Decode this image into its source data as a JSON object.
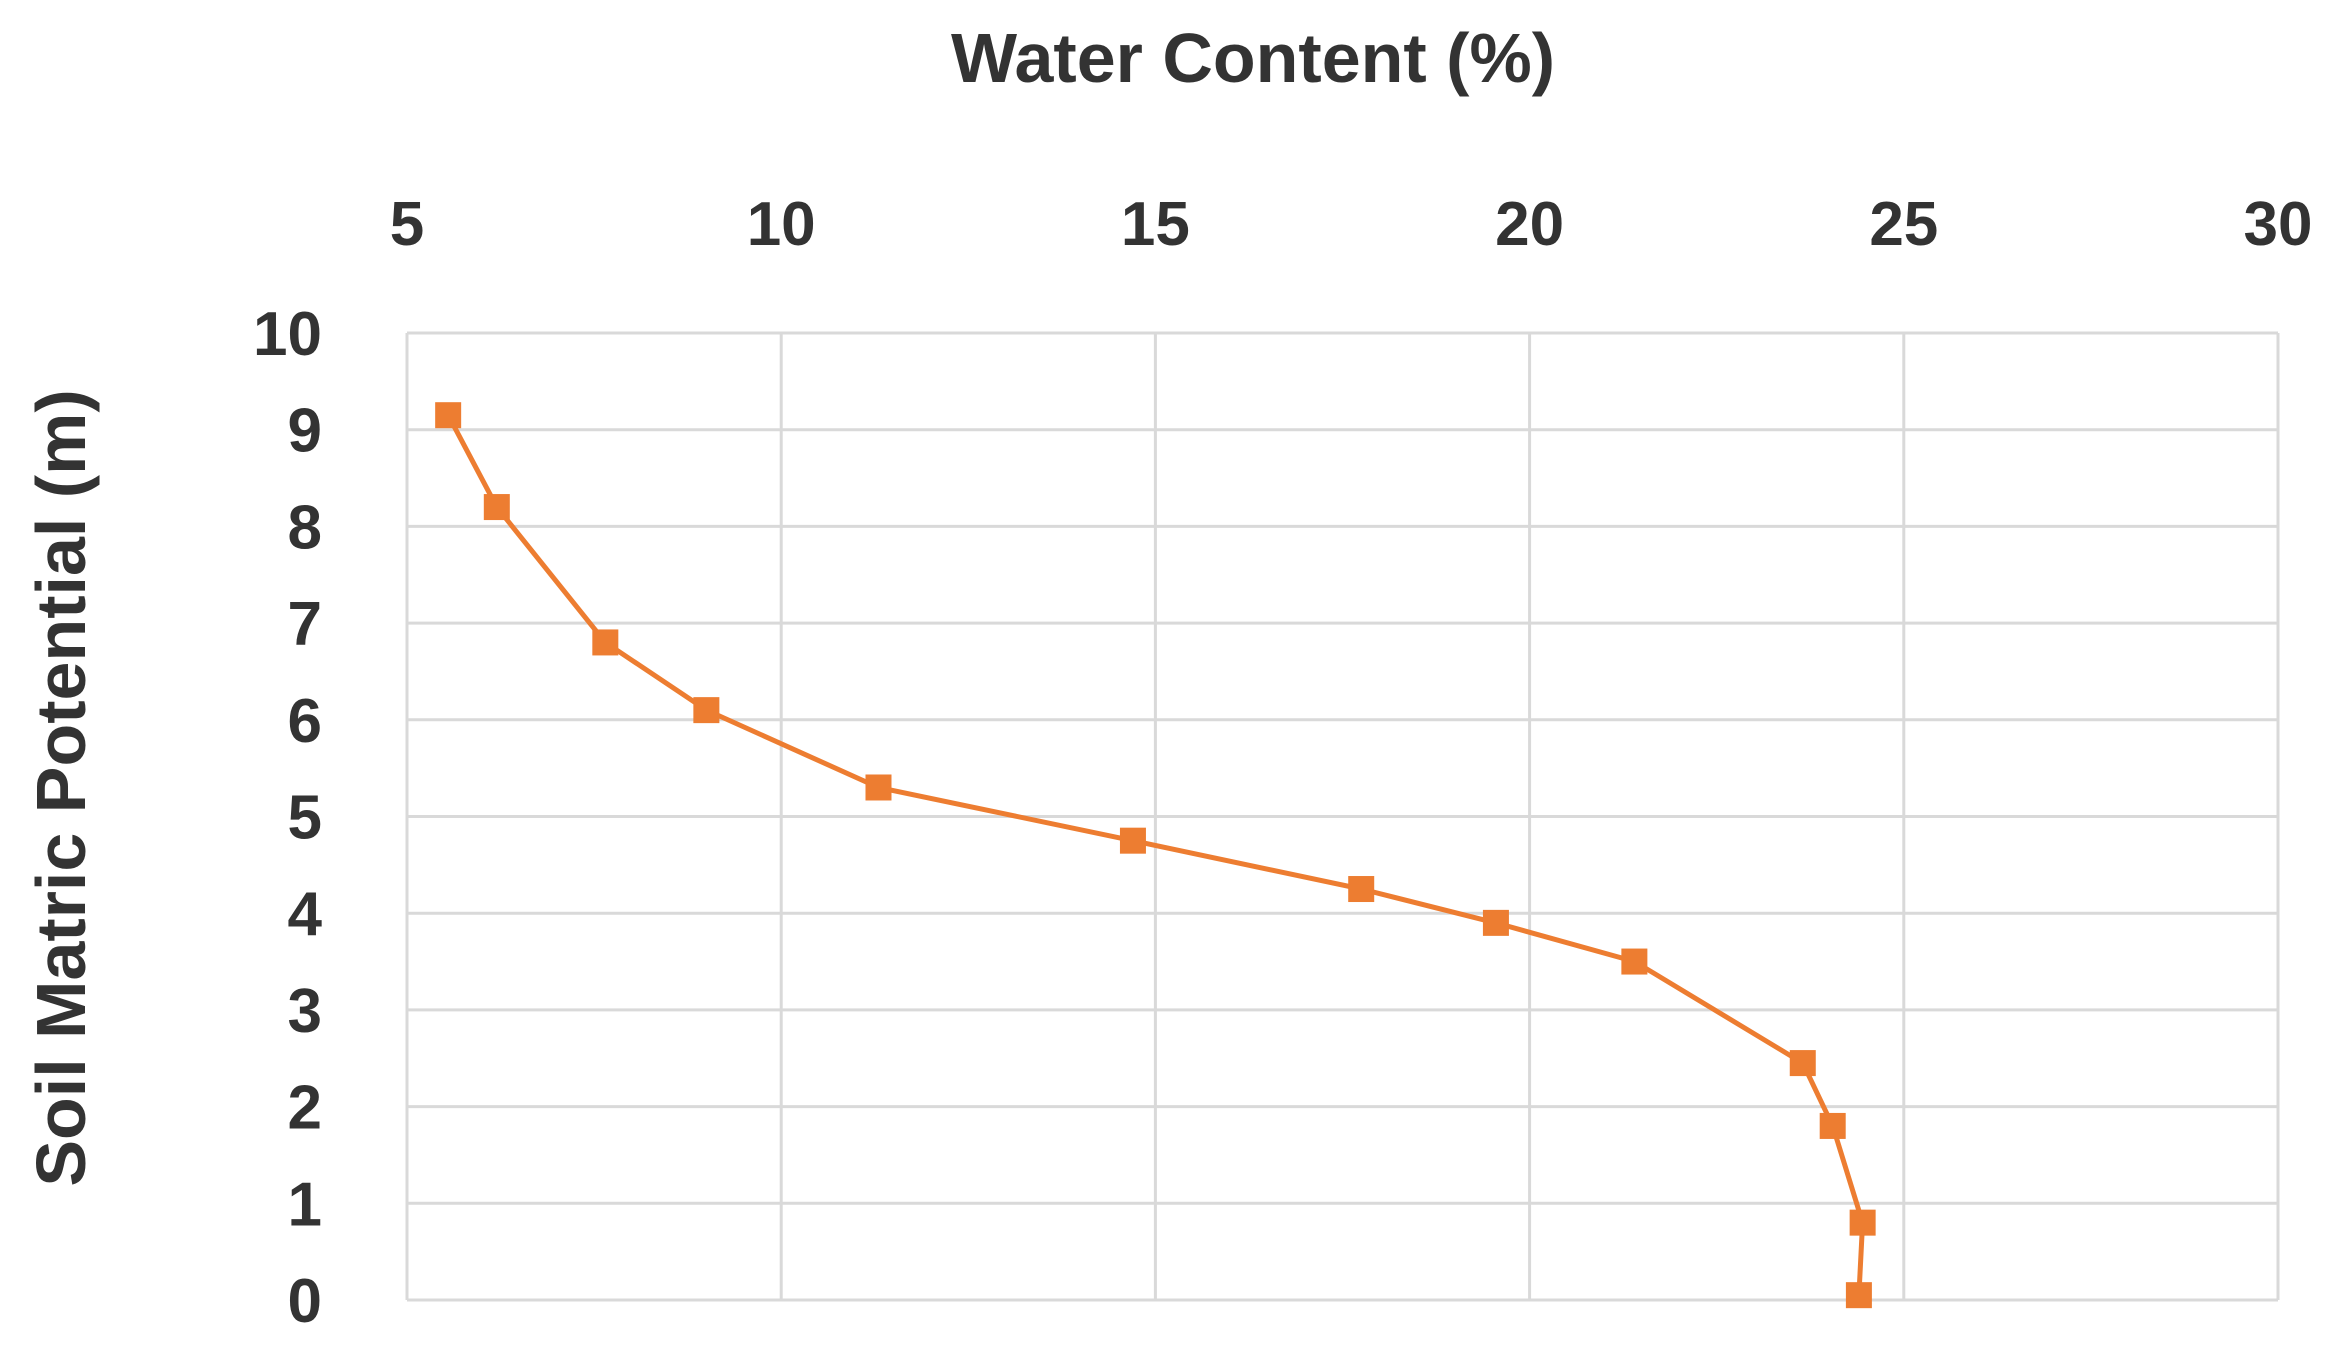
{
  "chart_data": {
    "type": "line",
    "xlabel": "Water Content (%)",
    "ylabel": "Soil Matric Potential (m)",
    "xlim": [
      5,
      30
    ],
    "ylim": [
      0,
      10
    ],
    "x_ticks": [
      "5",
      "10",
      "15",
      "20",
      "25",
      "30"
    ],
    "y_ticks": [
      "0",
      "1",
      "2",
      "3",
      "4",
      "5",
      "6",
      "7",
      "8",
      "9",
      "10"
    ],
    "x_axis_position": "top",
    "y_axis_inverted": true,
    "grid": true,
    "series": [
      {
        "marker": "square",
        "color": "#ED7D31",
        "points": [
          {
            "x": 5.55,
            "y": 9.15
          },
          {
            "x": 6.2,
            "y": 8.2
          },
          {
            "x": 7.65,
            "y": 6.8
          },
          {
            "x": 9.0,
            "y": 6.1
          },
          {
            "x": 11.3,
            "y": 5.3
          },
          {
            "x": 14.7,
            "y": 4.75
          },
          {
            "x": 17.75,
            "y": 4.25
          },
          {
            "x": 19.55,
            "y": 3.9
          },
          {
            "x": 21.4,
            "y": 3.5
          },
          {
            "x": 23.65,
            "y": 2.45
          },
          {
            "x": 24.05,
            "y": 1.8
          },
          {
            "x": 24.45,
            "y": 0.8
          },
          {
            "x": 24.4,
            "y": 0.05
          }
        ]
      }
    ]
  },
  "colors": {
    "series": "#ED7D31",
    "grid": "#D9D9D9",
    "text": "#333333"
  }
}
